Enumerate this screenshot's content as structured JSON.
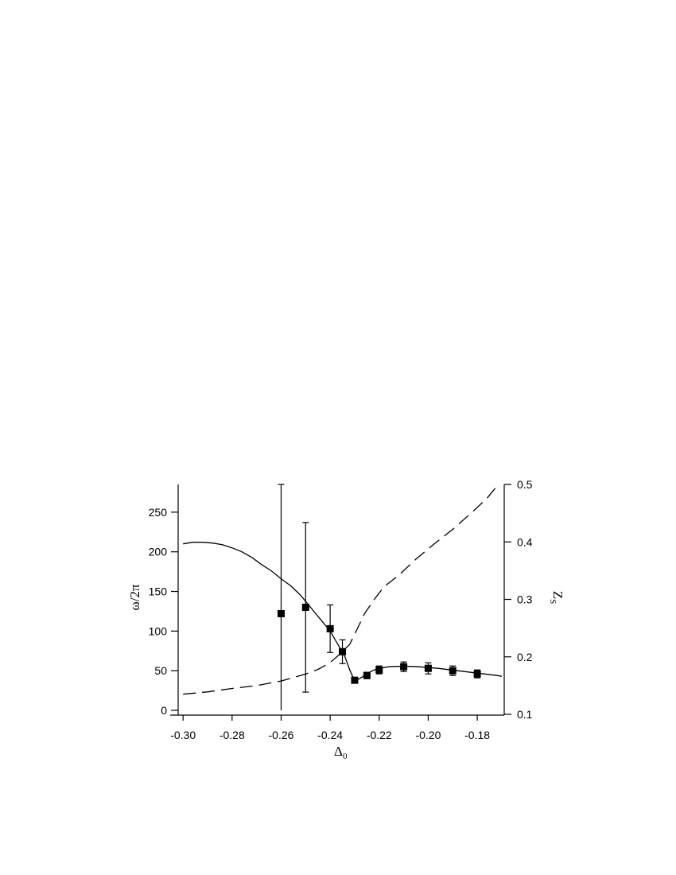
{
  "chart_data": {
    "type": "scatter",
    "xlabel": "Δ",
    "xlabel_sub": "0",
    "ylabel_left": "ω/2π",
    "ylabel_right": "Z",
    "ylabel_right_sub": "S",
    "xlim": [
      -0.302,
      -0.169
    ],
    "ylim_left": [
      -5,
      285
    ],
    "ylim_right": [
      0.1,
      0.5
    ],
    "x_ticks": [
      -0.3,
      -0.28,
      -0.26,
      -0.24,
      -0.22,
      -0.2,
      -0.18
    ],
    "x_tick_labels": [
      "-0.30",
      "-0.28",
      "-0.26",
      "-0.24",
      "-0.22",
      "-0.20",
      "-0.18"
    ],
    "y_left_ticks": [
      0,
      50,
      100,
      150,
      200,
      250
    ],
    "y_left_tick_labels": [
      "0",
      "50",
      "100",
      "150",
      "200",
      "250"
    ],
    "y_right_ticks": [
      0.1,
      0.2,
      0.3,
      0.4,
      0.5
    ],
    "y_right_tick_labels": [
      "0.1",
      "0.2",
      "0.3",
      "0.4",
      "0.5"
    ],
    "grid": false,
    "legend": "none",
    "series": [
      {
        "style": "markers-with-errorbars",
        "axis": "left",
        "points": [
          {
            "x": -0.26,
            "y": 122,
            "err_low": 122,
            "err_high": 163
          },
          {
            "x": -0.25,
            "y": 130,
            "err_low": 107,
            "err_high": 107
          },
          {
            "x": -0.24,
            "y": 103,
            "err_low": 30,
            "err_high": 30
          },
          {
            "x": -0.235,
            "y": 74,
            "err_low": 15,
            "err_high": 15
          },
          {
            "x": -0.23,
            "y": 38,
            "err_low": 3,
            "err_high": 3
          },
          {
            "x": -0.225,
            "y": 44,
            "err_low": 4,
            "err_high": 4
          },
          {
            "x": -0.22,
            "y": 51,
            "err_low": 5,
            "err_high": 5
          },
          {
            "x": -0.21,
            "y": 55,
            "err_low": 6,
            "err_high": 6
          },
          {
            "x": -0.2,
            "y": 53,
            "err_low": 7,
            "err_high": 7
          },
          {
            "x": -0.19,
            "y": 50,
            "err_low": 6,
            "err_high": 6
          },
          {
            "x": -0.18,
            "y": 46,
            "err_low": 5,
            "err_high": 5
          }
        ]
      },
      {
        "style": "solid-line",
        "axis": "left",
        "x": [
          -0.3,
          -0.296,
          -0.292,
          -0.288,
          -0.284,
          -0.28,
          -0.276,
          -0.272,
          -0.268,
          -0.264,
          -0.26,
          -0.256,
          -0.252,
          -0.248,
          -0.244,
          -0.24,
          -0.237,
          -0.234,
          -0.232,
          -0.23,
          -0.228,
          -0.226,
          -0.224,
          -0.222,
          -0.22,
          -0.216,
          -0.212,
          -0.208,
          -0.204,
          -0.2,
          -0.196,
          -0.192,
          -0.188,
          -0.184,
          -0.18,
          -0.176,
          -0.172,
          -0.17
        ],
        "y": [
          210,
          212,
          212,
          211,
          209,
          205,
          200,
          193,
          184,
          176,
          166,
          157,
          145,
          130,
          115,
          100,
          84,
          68,
          51,
          37,
          40,
          44,
          48,
          51,
          53,
          55,
          55.5,
          55.5,
          55,
          54,
          53,
          51.5,
          50,
          48.5,
          47,
          45.5,
          44,
          43
        ]
      },
      {
        "style": "dashed-line",
        "axis": "right",
        "x": [
          -0.3,
          -0.29,
          -0.28,
          -0.27,
          -0.26,
          -0.25,
          -0.245,
          -0.24,
          -0.236,
          -0.232,
          -0.229,
          -0.226,
          -0.222,
          -0.218,
          -0.212,
          -0.205,
          -0.198,
          -0.19,
          -0.182,
          -0.176,
          -0.172
        ],
        "y": [
          0.135,
          0.139,
          0.145,
          0.15,
          0.158,
          0.17,
          0.178,
          0.19,
          0.205,
          0.222,
          0.248,
          0.275,
          0.3,
          0.322,
          0.342,
          0.37,
          0.395,
          0.422,
          0.452,
          0.476,
          0.497
        ]
      }
    ]
  }
}
